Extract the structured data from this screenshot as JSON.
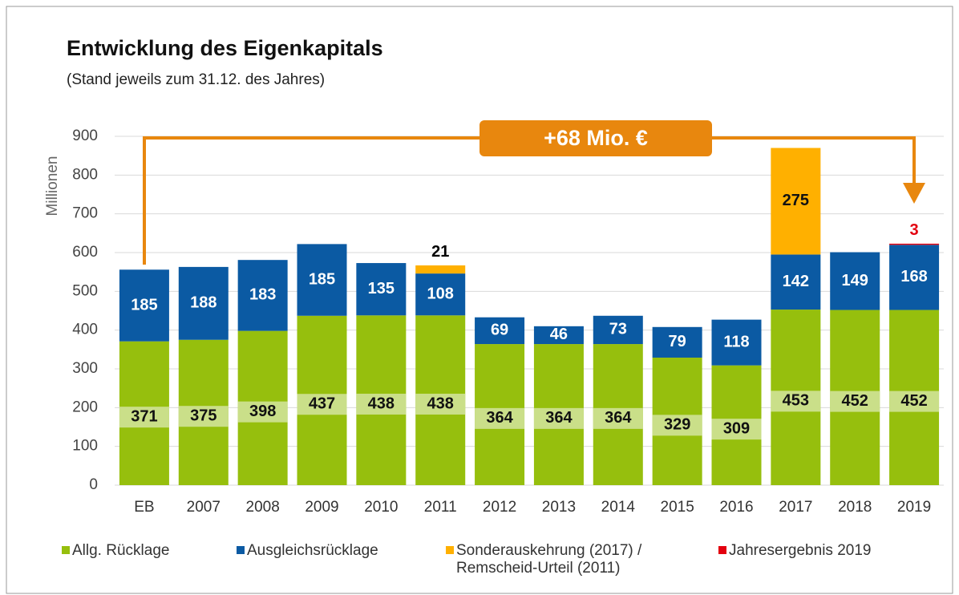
{
  "chart_data": {
    "type": "stacked_bar",
    "title": "Entwicklung des Eigenkapitals",
    "subtitle": "(Stand jeweils zum 31.12. des Jahres)",
    "y_label": "Millionen",
    "annotation": "+68 Mio. €",
    "categories": [
      "EB",
      "2007",
      "2008",
      "2009",
      "2010",
      "2011",
      "2012",
      "2013",
      "2014",
      "2015",
      "2016",
      "2017",
      "2018",
      "2019"
    ],
    "series": [
      {
        "name": "Allg. Rücklage",
        "color": "#96bf0d",
        "values": [
          371,
          375,
          398,
          437,
          438,
          438,
          364,
          364,
          364,
          329,
          309,
          453,
          452,
          452
        ]
      },
      {
        "name": "Ausgleichsrücklage",
        "color": "#0b5aa3",
        "values": [
          185,
          188,
          183,
          185,
          135,
          108,
          69,
          46,
          73,
          79,
          118,
          142,
          149,
          168
        ]
      },
      {
        "name": "Sonderauskehrung (2017) / Remscheid-Urteil (2011)",
        "color": "#ffb000",
        "values": [
          null,
          null,
          null,
          null,
          null,
          21,
          null,
          null,
          null,
          null,
          null,
          275,
          null,
          null
        ]
      },
      {
        "name": "Jahresergebnis 2019",
        "color": "#e3000f",
        "values": [
          null,
          null,
          null,
          null,
          null,
          null,
          null,
          null,
          null,
          null,
          null,
          null,
          null,
          3
        ]
      }
    ],
    "ylim": [
      0,
      900
    ],
    "yticks": [
      0,
      100,
      200,
      300,
      400,
      500,
      600,
      700,
      800,
      900
    ],
    "grid": true
  }
}
